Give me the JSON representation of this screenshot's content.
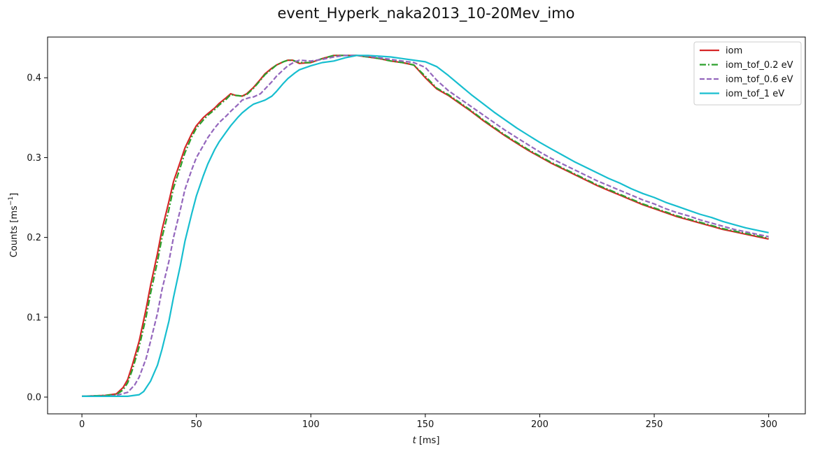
{
  "chart_data": {
    "type": "line",
    "title": "event_Hyperk_naka2013_10-20Mev_imo",
    "xlabel_var": "t",
    "xlabel_unit": " [ms]",
    "ylabel_text": "Counts [ms",
    "ylabel_sup": "−1",
    "ylabel_close": "]",
    "xlim": [
      -15,
      316
    ],
    "ylim": [
      -0.021,
      0.451
    ],
    "xticks": [
      0,
      50,
      100,
      150,
      200,
      250,
      300
    ],
    "xtick_labels": [
      "0",
      "50",
      "100",
      "150",
      "200",
      "250",
      "300"
    ],
    "yticks": [
      0.0,
      0.1,
      0.2,
      0.3,
      0.4
    ],
    "ytick_labels": [
      "0.0",
      "0.1",
      "0.2",
      "0.3",
      "0.4"
    ],
    "grid": false,
    "legend_position": "top-right",
    "series": [
      {
        "name": "iom",
        "color": "#d62728",
        "dash": "solid",
        "x": [
          0,
          10,
          15,
          18,
          20,
          22,
          25,
          28,
          30,
          33,
          35,
          38,
          40,
          43,
          45,
          48,
          50,
          53,
          55,
          58,
          60,
          63,
          65,
          67,
          70,
          72,
          75,
          78,
          80,
          83,
          85,
          88,
          90,
          92,
          95,
          100,
          105,
          110,
          115,
          120,
          125,
          130,
          135,
          140,
          145,
          150,
          155,
          160,
          165,
          170,
          175,
          180,
          185,
          190,
          195,
          200,
          205,
          210,
          215,
          220,
          225,
          230,
          235,
          240,
          245,
          250,
          255,
          260,
          265,
          270,
          275,
          280,
          285,
          290,
          295,
          300
        ],
        "y": [
          0.001,
          0.002,
          0.004,
          0.012,
          0.022,
          0.04,
          0.07,
          0.11,
          0.14,
          0.18,
          0.21,
          0.245,
          0.27,
          0.295,
          0.312,
          0.33,
          0.34,
          0.35,
          0.355,
          0.362,
          0.368,
          0.375,
          0.38,
          0.378,
          0.377,
          0.38,
          0.388,
          0.398,
          0.405,
          0.412,
          0.416,
          0.42,
          0.422,
          0.422,
          0.418,
          0.419,
          0.424,
          0.428,
          0.428,
          0.428,
          0.426,
          0.424,
          0.421,
          0.419,
          0.416,
          0.4,
          0.386,
          0.378,
          0.368,
          0.358,
          0.347,
          0.337,
          0.327,
          0.318,
          0.309,
          0.301,
          0.293,
          0.286,
          0.279,
          0.272,
          0.265,
          0.259,
          0.253,
          0.247,
          0.241,
          0.236,
          0.231,
          0.226,
          0.222,
          0.218,
          0.214,
          0.21,
          0.207,
          0.204,
          0.201,
          0.198
        ]
      },
      {
        "name": "iom_tof_0.2 eV",
        "color": "#2ca02c",
        "dash": "dashdot",
        "x": [
          0,
          10,
          15,
          18,
          20,
          22,
          25,
          28,
          30,
          33,
          35,
          38,
          40,
          43,
          45,
          48,
          50,
          53,
          55,
          58,
          60,
          63,
          65,
          67,
          70,
          72,
          75,
          78,
          80,
          83,
          85,
          88,
          90,
          92,
          95,
          100,
          105,
          110,
          115,
          120,
          125,
          130,
          135,
          140,
          145,
          150,
          155,
          160,
          165,
          170,
          175,
          180,
          185,
          190,
          195,
          200,
          205,
          210,
          215,
          220,
          225,
          230,
          235,
          240,
          245,
          250,
          255,
          260,
          265,
          270,
          275,
          280,
          285,
          290,
          295,
          300
        ],
        "y": [
          0.001,
          0.002,
          0.003,
          0.009,
          0.018,
          0.034,
          0.063,
          0.1,
          0.13,
          0.17,
          0.2,
          0.235,
          0.262,
          0.288,
          0.306,
          0.326,
          0.337,
          0.347,
          0.353,
          0.36,
          0.366,
          0.373,
          0.379,
          0.378,
          0.377,
          0.379,
          0.387,
          0.397,
          0.404,
          0.411,
          0.416,
          0.42,
          0.422,
          0.422,
          0.419,
          0.419,
          0.424,
          0.428,
          0.428,
          0.428,
          0.426,
          0.424,
          0.421,
          0.419,
          0.416,
          0.402,
          0.387,
          0.379,
          0.369,
          0.359,
          0.348,
          0.338,
          0.328,
          0.319,
          0.31,
          0.302,
          0.294,
          0.287,
          0.28,
          0.273,
          0.266,
          0.26,
          0.254,
          0.248,
          0.242,
          0.237,
          0.232,
          0.227,
          0.223,
          0.219,
          0.215,
          0.211,
          0.208,
          0.205,
          0.202,
          0.199
        ]
      },
      {
        "name": "iom_tof_0.6 eV",
        "color": "#9467bd",
        "dash": "dashed",
        "x": [
          0,
          10,
          15,
          20,
          23,
          25,
          28,
          30,
          33,
          35,
          38,
          40,
          43,
          45,
          48,
          50,
          53,
          55,
          58,
          60,
          63,
          65,
          68,
          70,
          73,
          75,
          78,
          80,
          83,
          85,
          88,
          90,
          93,
          95,
          100,
          105,
          110,
          115,
          120,
          125,
          130,
          135,
          140,
          145,
          150,
          155,
          160,
          165,
          170,
          175,
          180,
          185,
          190,
          195,
          200,
          205,
          210,
          215,
          220,
          225,
          230,
          235,
          240,
          245,
          250,
          255,
          260,
          265,
          270,
          275,
          280,
          285,
          290,
          295,
          300
        ],
        "y": [
          0.001,
          0.001,
          0.002,
          0.006,
          0.015,
          0.025,
          0.048,
          0.07,
          0.105,
          0.135,
          0.17,
          0.2,
          0.235,
          0.26,
          0.285,
          0.3,
          0.315,
          0.325,
          0.337,
          0.344,
          0.352,
          0.358,
          0.366,
          0.372,
          0.375,
          0.376,
          0.38,
          0.386,
          0.395,
          0.402,
          0.41,
          0.415,
          0.42,
          0.422,
          0.421,
          0.423,
          0.426,
          0.428,
          0.428,
          0.427,
          0.425,
          0.423,
          0.421,
          0.419,
          0.413,
          0.397,
          0.384,
          0.374,
          0.364,
          0.354,
          0.344,
          0.334,
          0.325,
          0.316,
          0.307,
          0.299,
          0.292,
          0.285,
          0.278,
          0.271,
          0.265,
          0.259,
          0.253,
          0.247,
          0.242,
          0.236,
          0.231,
          0.227,
          0.222,
          0.218,
          0.214,
          0.21,
          0.207,
          0.204,
          0.201
        ]
      },
      {
        "name": "iom_tof_1 eV",
        "color": "#17becf",
        "dash": "solid",
        "x": [
          0,
          10,
          20,
          25,
          27,
          30,
          33,
          35,
          38,
          40,
          43,
          45,
          48,
          50,
          53,
          55,
          58,
          60,
          63,
          65,
          68,
          70,
          73,
          75,
          78,
          80,
          83,
          85,
          88,
          90,
          93,
          95,
          100,
          105,
          110,
          115,
          120,
          125,
          130,
          135,
          140,
          145,
          150,
          155,
          160,
          165,
          170,
          175,
          180,
          185,
          190,
          195,
          200,
          205,
          210,
          215,
          220,
          225,
          230,
          235,
          240,
          245,
          250,
          255,
          260,
          265,
          270,
          275,
          280,
          285,
          290,
          295,
          300
        ],
        "y": [
          0.001,
          0.001,
          0.001,
          0.003,
          0.007,
          0.02,
          0.04,
          0.06,
          0.095,
          0.125,
          0.165,
          0.195,
          0.23,
          0.252,
          0.277,
          0.292,
          0.31,
          0.32,
          0.332,
          0.34,
          0.35,
          0.356,
          0.363,
          0.367,
          0.37,
          0.372,
          0.377,
          0.383,
          0.393,
          0.399,
          0.406,
          0.41,
          0.415,
          0.419,
          0.421,
          0.425,
          0.428,
          0.428,
          0.427,
          0.426,
          0.424,
          0.422,
          0.42,
          0.414,
          0.403,
          0.391,
          0.379,
          0.368,
          0.357,
          0.347,
          0.337,
          0.328,
          0.319,
          0.311,
          0.303,
          0.295,
          0.288,
          0.281,
          0.274,
          0.268,
          0.261,
          0.255,
          0.25,
          0.244,
          0.239,
          0.234,
          0.229,
          0.225,
          0.22,
          0.216,
          0.212,
          0.209,
          0.206
        ]
      }
    ]
  }
}
